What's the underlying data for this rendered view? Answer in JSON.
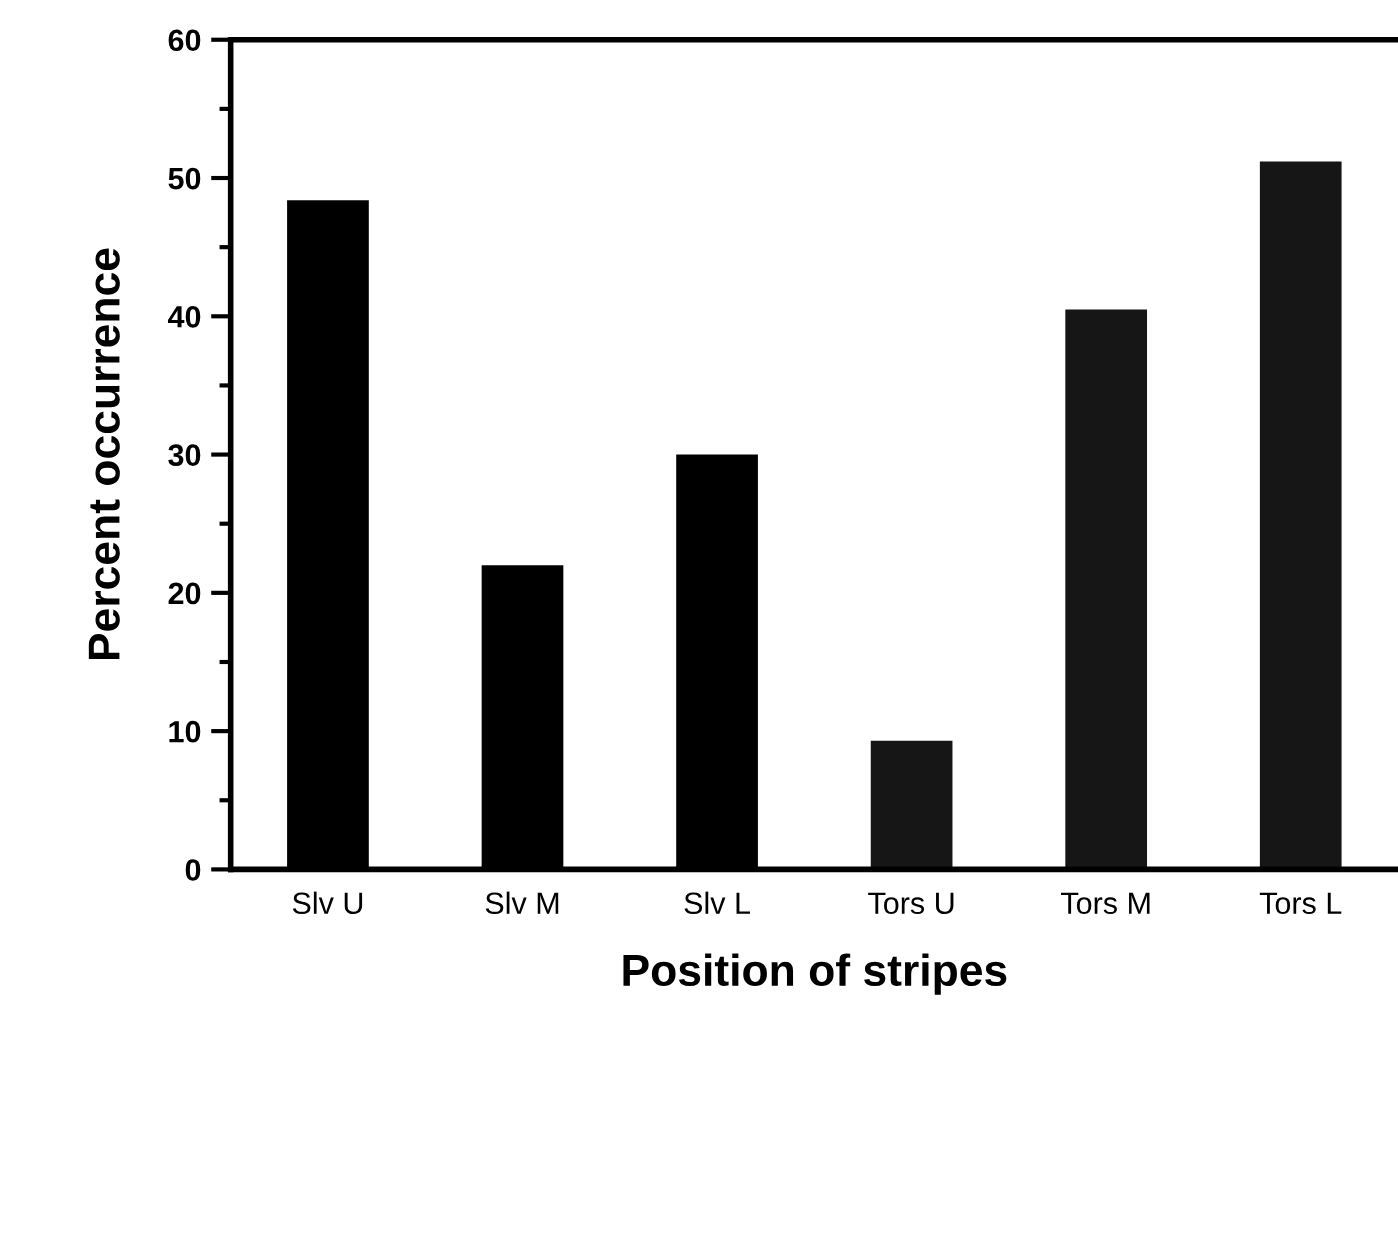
{
  "chart_data": {
    "type": "bar",
    "xlabel": "Position of stripes",
    "ylabel": "Percent occurrence",
    "categories": [
      "Slv U",
      "Slv M",
      "Slv L",
      "Tors U",
      "Tors M",
      "Tors L"
    ],
    "values": [
      48.4,
      22,
      30,
      9.3,
      40.5,
      51.2
    ],
    "colors": [
      "#000000",
      "#000000",
      "#000000",
      "#161616",
      "#161616",
      "#161616"
    ],
    "ylim": [
      0,
      60
    ],
    "yticks": [
      0,
      10,
      20,
      30,
      40,
      50,
      60
    ],
    "grid": false
  }
}
